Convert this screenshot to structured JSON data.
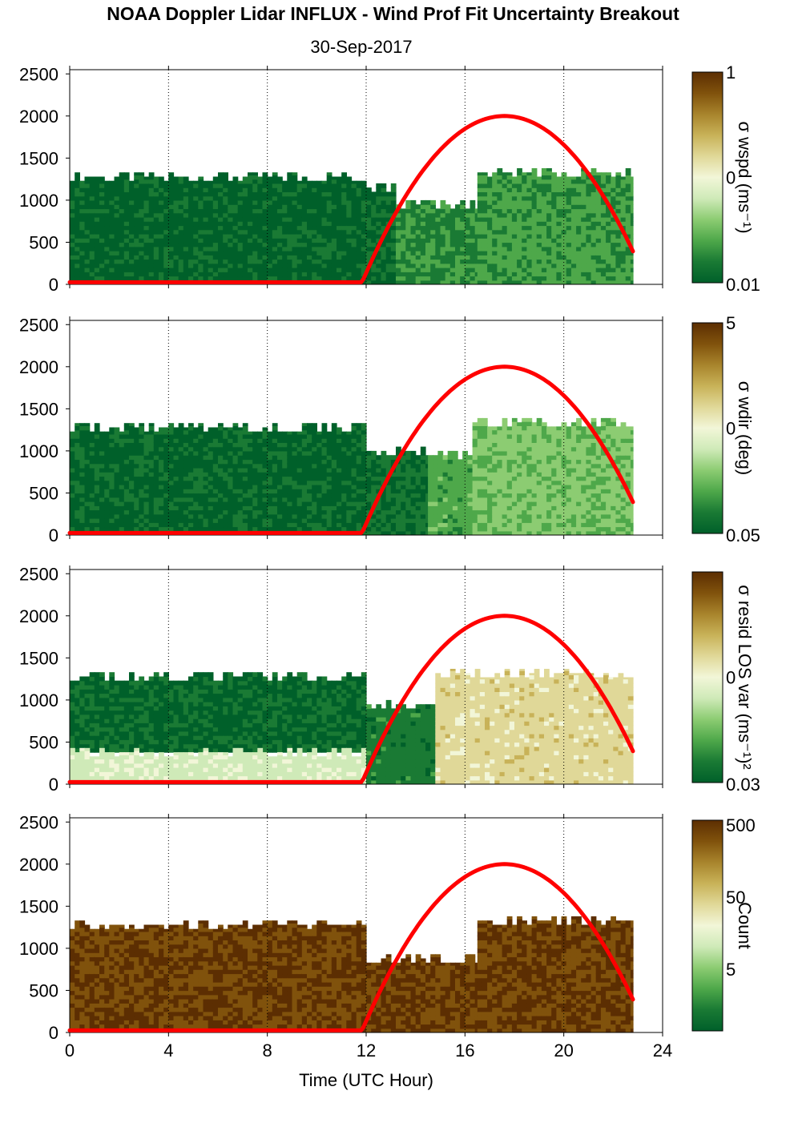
{
  "title": "NOAA Doppler Lidar INFLUX - Wind Prof Fit Uncertainty Breakout",
  "subtitle": "30-Sep-2017",
  "colors": {
    "scale": [
      "#00602a",
      "#1a7a34",
      "#4ea84a",
      "#8ccc72",
      "#cfeab8",
      "#f2f6d8",
      "#e0d898",
      "#c8b258",
      "#a8842c",
      "#80520c",
      "#5c2e02"
    ],
    "sun_line": "#ff0000",
    "gridline": "#000000"
  },
  "chart_data": [
    {
      "type": "heatmap",
      "panel": "wspd-uncertainty",
      "title": "",
      "xlabel": "",
      "ylabel": "",
      "colorbar_label": "σ wspd (ms⁻¹)",
      "colorbar_ticks": [
        "1",
        "0",
        "0.01"
      ],
      "xlim": [
        0,
        24
      ],
      "ylim": [
        0,
        2550
      ],
      "yticks": [
        0,
        500,
        1000,
        1500,
        2000,
        2500
      ],
      "x_gridlines": [
        4,
        8,
        12,
        16,
        20,
        24
      ],
      "regions": [
        {
          "x0": 0,
          "x1": 12,
          "y0": 0,
          "y1": 1280,
          "level": 0.02
        },
        {
          "x0": 12,
          "x1": 13.2,
          "y0": 0,
          "y1": 1150,
          "level": 0.05
        },
        {
          "x0": 13.2,
          "x1": 16.5,
          "y0": 0,
          "y1": 950,
          "level": 0.14
        },
        {
          "x0": 16.5,
          "x1": 22.8,
          "y0": 0,
          "y1": 1330,
          "level": 0.17
        }
      ],
      "sun_elevation": {
        "x_start": 0,
        "x_rise": 11.8,
        "x_peak": 17.6,
        "x_end": 22.8,
        "y_peak": 2000,
        "y_end": 350
      }
    },
    {
      "type": "heatmap",
      "panel": "wdir-uncertainty",
      "title": "",
      "xlabel": "",
      "ylabel": "",
      "colorbar_label": "σ wdir (deg)",
      "colorbar_ticks": [
        "5",
        "0",
        "0.05"
      ],
      "xlim": [
        0,
        24
      ],
      "ylim": [
        0,
        2550
      ],
      "yticks": [
        0,
        500,
        1000,
        1500,
        2000,
        2500
      ],
      "x_gridlines": [
        4,
        8,
        12,
        16,
        20,
        24
      ],
      "regions": [
        {
          "x0": 0,
          "x1": 12,
          "y0": 0,
          "y1": 1280,
          "level": 0.03
        },
        {
          "x0": 12,
          "x1": 14.5,
          "y0": 0,
          "y1": 1000,
          "level": 0.06
        },
        {
          "x0": 14.5,
          "x1": 16.3,
          "y0": 0,
          "y1": 950,
          "level": 0.2
        },
        {
          "x0": 16.3,
          "x1": 22.8,
          "y0": 0,
          "y1": 1340,
          "level": 0.27
        }
      ],
      "sun_elevation": {
        "x_start": 0,
        "x_rise": 11.8,
        "x_peak": 17.6,
        "x_end": 22.8,
        "y_peak": 2000,
        "y_end": 350
      }
    },
    {
      "type": "heatmap",
      "panel": "resid-los-var",
      "title": "",
      "xlabel": "",
      "ylabel": "",
      "colorbar_label": "σ resid LOS var (ms⁻¹)²",
      "colorbar_ticks": [
        "0",
        "0.03"
      ],
      "xlim": [
        0,
        24
      ],
      "ylim": [
        0,
        2550
      ],
      "yticks": [
        0,
        500,
        1000,
        1500,
        2000,
        2500
      ],
      "x_gridlines": [
        4,
        8,
        12,
        16,
        20,
        24
      ],
      "regions": [
        {
          "x0": 0,
          "x1": 12,
          "y0": 380,
          "y1": 1280,
          "level": 0.04
        },
        {
          "x0": 0,
          "x1": 12,
          "y0": 0,
          "y1": 380,
          "level": 0.42
        },
        {
          "x0": 12,
          "x1": 14.8,
          "y0": 0,
          "y1": 950,
          "level": 0.1
        },
        {
          "x0": 14.8,
          "x1": 22.8,
          "y0": 0,
          "y1": 1320,
          "level": 0.6
        }
      ],
      "sun_elevation": {
        "x_start": 0,
        "x_rise": 11.8,
        "x_peak": 17.6,
        "x_end": 22.8,
        "y_peak": 2000,
        "y_end": 350
      }
    },
    {
      "type": "heatmap",
      "panel": "count",
      "title": "",
      "xlabel": "Time (UTC Hour)",
      "ylabel": "",
      "colorbar_label": "Count",
      "colorbar_ticks": [
        "500",
        "50",
        "5"
      ],
      "xlim": [
        0,
        24
      ],
      "ylim": [
        0,
        2550
      ],
      "yticks": [
        0,
        500,
        1000,
        1500,
        2000,
        2500
      ],
      "xticks": [
        0,
        4,
        8,
        12,
        16,
        20,
        24
      ],
      "x_gridlines": [
        4,
        8,
        12,
        16,
        20,
        24
      ],
      "regions": [
        {
          "x0": 0,
          "x1": 12,
          "y0": 0,
          "y1": 1280,
          "level": 0.95
        },
        {
          "x0": 12,
          "x1": 16.5,
          "y0": 0,
          "y1": 880,
          "level": 0.95
        },
        {
          "x0": 16.5,
          "x1": 22.8,
          "y0": 0,
          "y1": 1330,
          "level": 0.95
        }
      ],
      "sun_elevation": {
        "x_start": 0,
        "x_rise": 11.8,
        "x_peak": 17.6,
        "x_end": 22.8,
        "y_peak": 2000,
        "y_end": 350
      }
    }
  ]
}
